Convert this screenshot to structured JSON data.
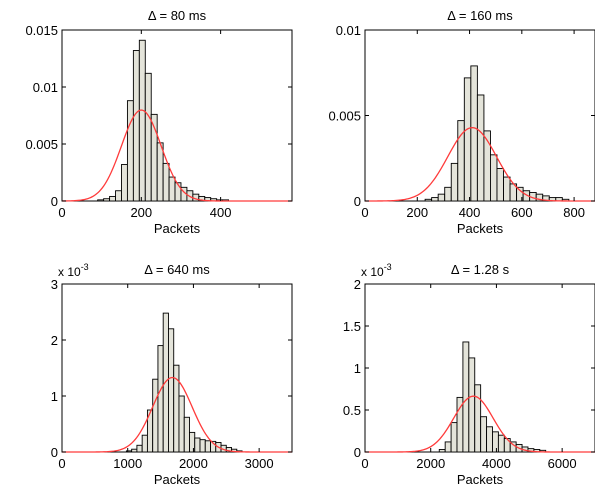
{
  "chart_data": [
    {
      "type": "bar",
      "title": "Δ = 80 ms",
      "xlabel": "Packets",
      "ylabel": "",
      "multiplier": "",
      "xlim": [
        0,
        580
      ],
      "ylim": [
        0,
        0.015
      ],
      "xticks": [
        0,
        200,
        400
      ],
      "xtick_labels": [
        "0",
        "200",
        "400"
      ],
      "yticks": [
        0,
        0.005,
        0.01,
        0.015
      ],
      "ytick_labels": [
        "0",
        "0.005",
        "0.01",
        "0.015"
      ],
      "bin_width": 15,
      "bin_starts": [
        90,
        105,
        120,
        135,
        150,
        165,
        180,
        195,
        210,
        225,
        240,
        255,
        270,
        285,
        300,
        315,
        330,
        345,
        360,
        375,
        390,
        405
      ],
      "bin_values": [
        0.0001,
        0.0002,
        0.0004,
        0.0009,
        0.0032,
        0.0088,
        0.0132,
        0.0141,
        0.0112,
        0.0076,
        0.0051,
        0.0033,
        0.0021,
        0.0016,
        0.0012,
        0.0009,
        0.0006,
        0.0004,
        0.0003,
        0.0002,
        0.0001,
        0.0001
      ],
      "curve": {
        "type": "normal",
        "mean": 200,
        "sd": 50
      }
    },
    {
      "type": "bar",
      "title": "Δ = 160 ms",
      "xlabel": "Packets",
      "ylabel": "",
      "multiplier": "",
      "xlim": [
        0,
        880
      ],
      "ylim": [
        0,
        0.01
      ],
      "xticks": [
        0,
        200,
        400,
        600,
        800
      ],
      "xtick_labels": [
        "0",
        "200",
        "400",
        "600",
        "800"
      ],
      "yticks": [
        0,
        0.005,
        0.01
      ],
      "ytick_labels": [
        "0",
        "0.005",
        "0.01"
      ],
      "bin_width": 25,
      "bin_starts": [
        230,
        255,
        280,
        305,
        330,
        355,
        380,
        405,
        430,
        455,
        480,
        505,
        530,
        555,
        580,
        605,
        630,
        655,
        680,
        705,
        730,
        755
      ],
      "bin_values": [
        0.0001,
        0.0002,
        0.0004,
        0.0008,
        0.0022,
        0.0047,
        0.0072,
        0.0079,
        0.0062,
        0.0041,
        0.0027,
        0.0019,
        0.0014,
        0.001,
        0.0008,
        0.0006,
        0.0005,
        0.0004,
        0.0003,
        0.0002,
        0.0002,
        0.0001
      ],
      "curve": {
        "type": "normal",
        "mean": 410,
        "sd": 93
      }
    },
    {
      "type": "bar",
      "title": "Δ = 640 ms",
      "xlabel": "Packets",
      "ylabel": "",
      "multiplier": "x 10",
      "multiplier_exponent": "-3",
      "xlim": [
        0,
        3500
      ],
      "ylim": [
        0,
        3
      ],
      "xticks": [
        0,
        1000,
        2000,
        3000
      ],
      "xtick_labels": [
        "0",
        "1000",
        "2000",
        "3000"
      ],
      "yticks": [
        0,
        1,
        2,
        3
      ],
      "ytick_labels": [
        "0",
        "1",
        "2",
        "3"
      ],
      "bin_width": 80,
      "bin_starts": [
        980,
        1060,
        1140,
        1220,
        1300,
        1380,
        1460,
        1540,
        1620,
        1700,
        1780,
        1860,
        1940,
        2020,
        2100,
        2180,
        2260,
        2340,
        2420,
        2500,
        2580,
        2660
      ],
      "bin_values": [
        0.02,
        0.05,
        0.12,
        0.3,
        0.75,
        1.3,
        1.9,
        2.48,
        2.2,
        1.55,
        1.0,
        0.62,
        0.35,
        0.25,
        0.22,
        0.2,
        0.19,
        0.17,
        0.12,
        0.08,
        0.05,
        0.02
      ],
      "curve": {
        "type": "normal",
        "mean": 1680,
        "sd": 300
      }
    },
    {
      "type": "bar",
      "title": "Δ = 1.28 s",
      "xlabel": "Packets",
      "ylabel": "",
      "multiplier": "x 10",
      "multiplier_exponent": "-3",
      "xlim": [
        0,
        7000
      ],
      "ylim": [
        0,
        2
      ],
      "xticks": [
        0,
        2000,
        4000,
        6000
      ],
      "xtick_labels": [
        "0",
        "2000",
        "4000",
        "6000"
      ],
      "yticks": [
        0,
        0.5,
        1,
        1.5,
        2
      ],
      "ytick_labels": [
        "0",
        "0.5",
        "1",
        "1.5",
        "2"
      ],
      "bin_width": 180,
      "bin_starts": [
        2260,
        2440,
        2620,
        2800,
        2980,
        3160,
        3340,
        3520,
        3700,
        3880,
        4060,
        4240,
        4420,
        4600,
        4780,
        4960,
        5140,
        5320
      ],
      "bin_values": [
        0.03,
        0.12,
        0.35,
        0.65,
        1.31,
        1.12,
        0.8,
        0.42,
        0.3,
        0.24,
        0.2,
        0.16,
        0.12,
        0.09,
        0.06,
        0.04,
        0.03,
        0.02
      ],
      "curve": {
        "type": "normal",
        "mean": 3300,
        "sd": 600
      }
    }
  ],
  "colors": {
    "bar_fill": "#e4e4da",
    "bar_stroke": "#000000",
    "curve": "#ff3b3b",
    "axis": "#000000",
    "background": "#ffffff"
  }
}
